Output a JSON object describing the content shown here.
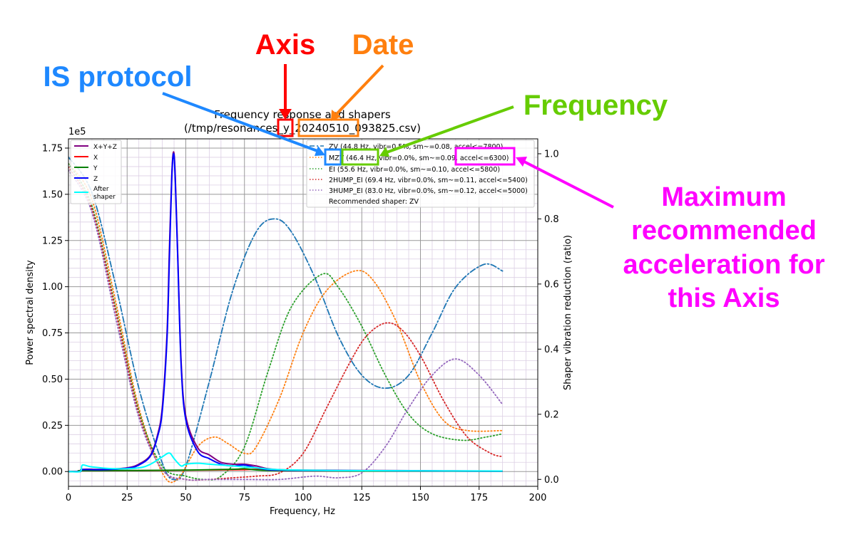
{
  "colors": {
    "xyz": "#800080",
    "x": "#ff0000",
    "y": "#008000",
    "z": "#0000ff",
    "after": "#00ffff",
    "zv": "#1f77b4",
    "mzv": "#ff7f0e",
    "ei": "#2ca02c",
    "hump2": "#d62728",
    "hump3": "#9467bd",
    "callout_axis": "#ff0000",
    "callout_date": "#ff7f0e",
    "callout_is": "#1e88ff",
    "callout_freq": "#66cc00",
    "callout_accel": "#ff00ff"
  },
  "callouts": {
    "axis": "Axis",
    "date": "Date",
    "is_protocol": "IS protocol",
    "frequency": "Frequency",
    "accel": [
      "Maximum",
      "recommended",
      "acceleration for",
      "this Axis"
    ]
  },
  "chart_data": {
    "type": "line",
    "title": "Frequency response and shapers",
    "subtitle": "(/tmp/resonances_y_20240510_093825.csv)",
    "xlabel": "Frequency, Hz",
    "ylabel": "Power spectral density",
    "y2label": "Shaper vibration reduction (ratio)",
    "y_multiplier": "1e5",
    "xlim": [
      0,
      200
    ],
    "ylim": [
      -0.08,
      1.8
    ],
    "y2lim": [
      -0.0213,
      1.0458
    ],
    "xticks": [
      "0",
      "25",
      "50",
      "75",
      "100",
      "125",
      "150",
      "175",
      "200"
    ],
    "yticks": [
      "0.00",
      "0.25",
      "0.50",
      "0.75",
      "1.00",
      "1.25",
      "1.50",
      "1.75"
    ],
    "y2ticks": [
      "0.0",
      "0.2",
      "0.4",
      "0.6",
      "0.8",
      "1.0"
    ],
    "grid": true,
    "legend_left": {
      "placement": "upper-left",
      "entries": [
        "X+Y+Z",
        "X",
        "Y",
        "Z",
        "After",
        "shaper"
      ]
    },
    "legend_right": {
      "placement": "upper-right",
      "entries": [
        "ZV (44.8 Hz, vibr=0.5%, sm~=0.08, accel<=7800)",
        "MZV (46.4 Hz, vibr=0.0%, sm~=0.09, accel<=6300)",
        "EI (55.6 Hz, vibr=0.0%, sm~=0.10, accel<=5800)",
        "2HUMP_EI (69.4 Hz, vibr=0.0%, sm~=0.11, accel<=5400)",
        "3HUMP_EI (83.0 Hz, vibr=0.0%, sm~=0.12, accel<=5000)",
        "Recommended shaper: ZV"
      ]
    },
    "psd_series": [
      {
        "name": "X+Y+Z",
        "color": "#800080",
        "x": [
          0,
          5,
          6,
          15,
          25,
          30,
          35,
          38,
          40,
          42,
          43,
          44,
          44.8,
          45.5,
          46.5,
          48,
          50,
          55,
          60,
          65,
          70,
          75,
          80,
          85,
          90,
          100,
          120,
          140,
          160,
          185
        ],
        "y": [
          0,
          0,
          0.012,
          0.012,
          0.02,
          0.04,
          0.09,
          0.2,
          0.35,
          0.75,
          1.2,
          1.6,
          1.73,
          1.6,
          1.2,
          0.6,
          0.3,
          0.13,
          0.09,
          0.05,
          0.04,
          0.04,
          0.03,
          0.015,
          0.01,
          0.008,
          0.006,
          0.005,
          0.004,
          0.003
        ]
      },
      {
        "name": "X",
        "color": "#ff0000",
        "x": [
          0,
          5,
          6,
          30,
          50,
          75,
          80,
          90,
          120,
          185
        ],
        "y": [
          0,
          0,
          0.005,
          0.005,
          0.007,
          0.01,
          0.012,
          0.005,
          0.003,
          0.002
        ]
      },
      {
        "name": "Y",
        "color": "#008000",
        "x": [
          0,
          5,
          6,
          30,
          50,
          70,
          75,
          85,
          120,
          185
        ],
        "y": [
          0,
          0,
          0.005,
          0.006,
          0.008,
          0.012,
          0.015,
          0.006,
          0.003,
          0.002
        ]
      },
      {
        "name": "Z",
        "color": "#0000ff",
        "x": [
          0,
          5,
          6,
          15,
          25,
          30,
          35,
          38,
          40,
          42,
          43,
          44,
          44.8,
          45.5,
          46.5,
          48,
          50,
          55,
          60,
          65,
          70,
          75,
          80,
          85,
          90,
          100,
          120,
          140,
          160,
          185
        ],
        "y": [
          0,
          0,
          0.01,
          0.01,
          0.018,
          0.035,
          0.085,
          0.19,
          0.33,
          0.72,
          1.15,
          1.58,
          1.72,
          1.58,
          1.18,
          0.58,
          0.28,
          0.11,
          0.07,
          0.04,
          0.03,
          0.035,
          0.02,
          0.01,
          0.008,
          0.006,
          0.005,
          0.004,
          0.003,
          0.002
        ]
      },
      {
        "name": "After shaper",
        "color": "#00ffff",
        "x": [
          0,
          5,
          6,
          10,
          20,
          30,
          35,
          40,
          43,
          45,
          48,
          50,
          55,
          60,
          70,
          80,
          90,
          120,
          185
        ],
        "y": [
          0,
          0,
          0.035,
          0.025,
          0.015,
          0.02,
          0.04,
          0.08,
          0.1,
          0.07,
          0.03,
          0.04,
          0.045,
          0.04,
          0.03,
          0.02,
          0.01,
          0.005,
          0.003
        ]
      }
    ],
    "shaper_series": [
      {
        "name": "ZV",
        "color": "#1f77b4",
        "style": "dashdot",
        "x": [
          0,
          10,
          20,
          30,
          40,
          44.8,
          50,
          60,
          70,
          80,
          88,
          95,
          105,
          115,
          125,
          135,
          145,
          155,
          165,
          177,
          185
        ],
        "y": [
          0.99,
          0.88,
          0.6,
          0.28,
          0.05,
          0,
          0.04,
          0.3,
          0.58,
          0.76,
          0.8,
          0.76,
          0.62,
          0.44,
          0.32,
          0.28,
          0.32,
          0.45,
          0.59,
          0.66,
          0.64
        ]
      },
      {
        "name": "MZV",
        "color": "#ff7f0e",
        "style": "dotted",
        "x": [
          0,
          10,
          20,
          30,
          40,
          46.4,
          55,
          62,
          68,
          75,
          80,
          90,
          100,
          110,
          122,
          130,
          140,
          150,
          160,
          170,
          185
        ],
        "y": [
          0.97,
          0.86,
          0.55,
          0.22,
          0.02,
          0,
          0.1,
          0.13,
          0.11,
          0.08,
          0.1,
          0.25,
          0.45,
          0.58,
          0.64,
          0.61,
          0.48,
          0.3,
          0.18,
          0.15,
          0.15
        ]
      },
      {
        "name": "EI",
        "color": "#2ca02c",
        "style": "dotted",
        "x": [
          0,
          10,
          20,
          30,
          40,
          50,
          58,
          65,
          75,
          85,
          95,
          108,
          115,
          125,
          135,
          145,
          155,
          168,
          178,
          185
        ],
        "y": [
          0.97,
          0.84,
          0.53,
          0.21,
          0.04,
          0.01,
          0,
          0.01,
          0.1,
          0.33,
          0.53,
          0.63,
          0.59,
          0.47,
          0.32,
          0.2,
          0.14,
          0.12,
          0.13,
          0.14
        ]
      },
      {
        "name": "2HUMP_EI",
        "color": "#d62728",
        "style": "dotted",
        "x": [
          0,
          10,
          20,
          30,
          40,
          50,
          60,
          70,
          80,
          90,
          100,
          110,
          120,
          127,
          135,
          142,
          150,
          160,
          170,
          180,
          185
        ],
        "y": [
          0.96,
          0.83,
          0.52,
          0.2,
          0.03,
          0,
          0,
          0.005,
          0.01,
          0.02,
          0.08,
          0.22,
          0.36,
          0.44,
          0.48,
          0.46,
          0.38,
          0.24,
          0.13,
          0.08,
          0.07
        ]
      },
      {
        "name": "3HUMP_EI",
        "color": "#9467bd",
        "style": "dotted",
        "x": [
          0,
          10,
          20,
          30,
          40,
          50,
          60,
          75,
          90,
          105,
          115,
          125,
          135,
          145,
          155,
          165,
          175,
          185
        ],
        "y": [
          0.95,
          0.82,
          0.5,
          0.19,
          0.03,
          0,
          0,
          0,
          0,
          0.01,
          0.005,
          0.02,
          0.1,
          0.22,
          0.32,
          0.37,
          0.32,
          0.23
        ]
      }
    ]
  }
}
